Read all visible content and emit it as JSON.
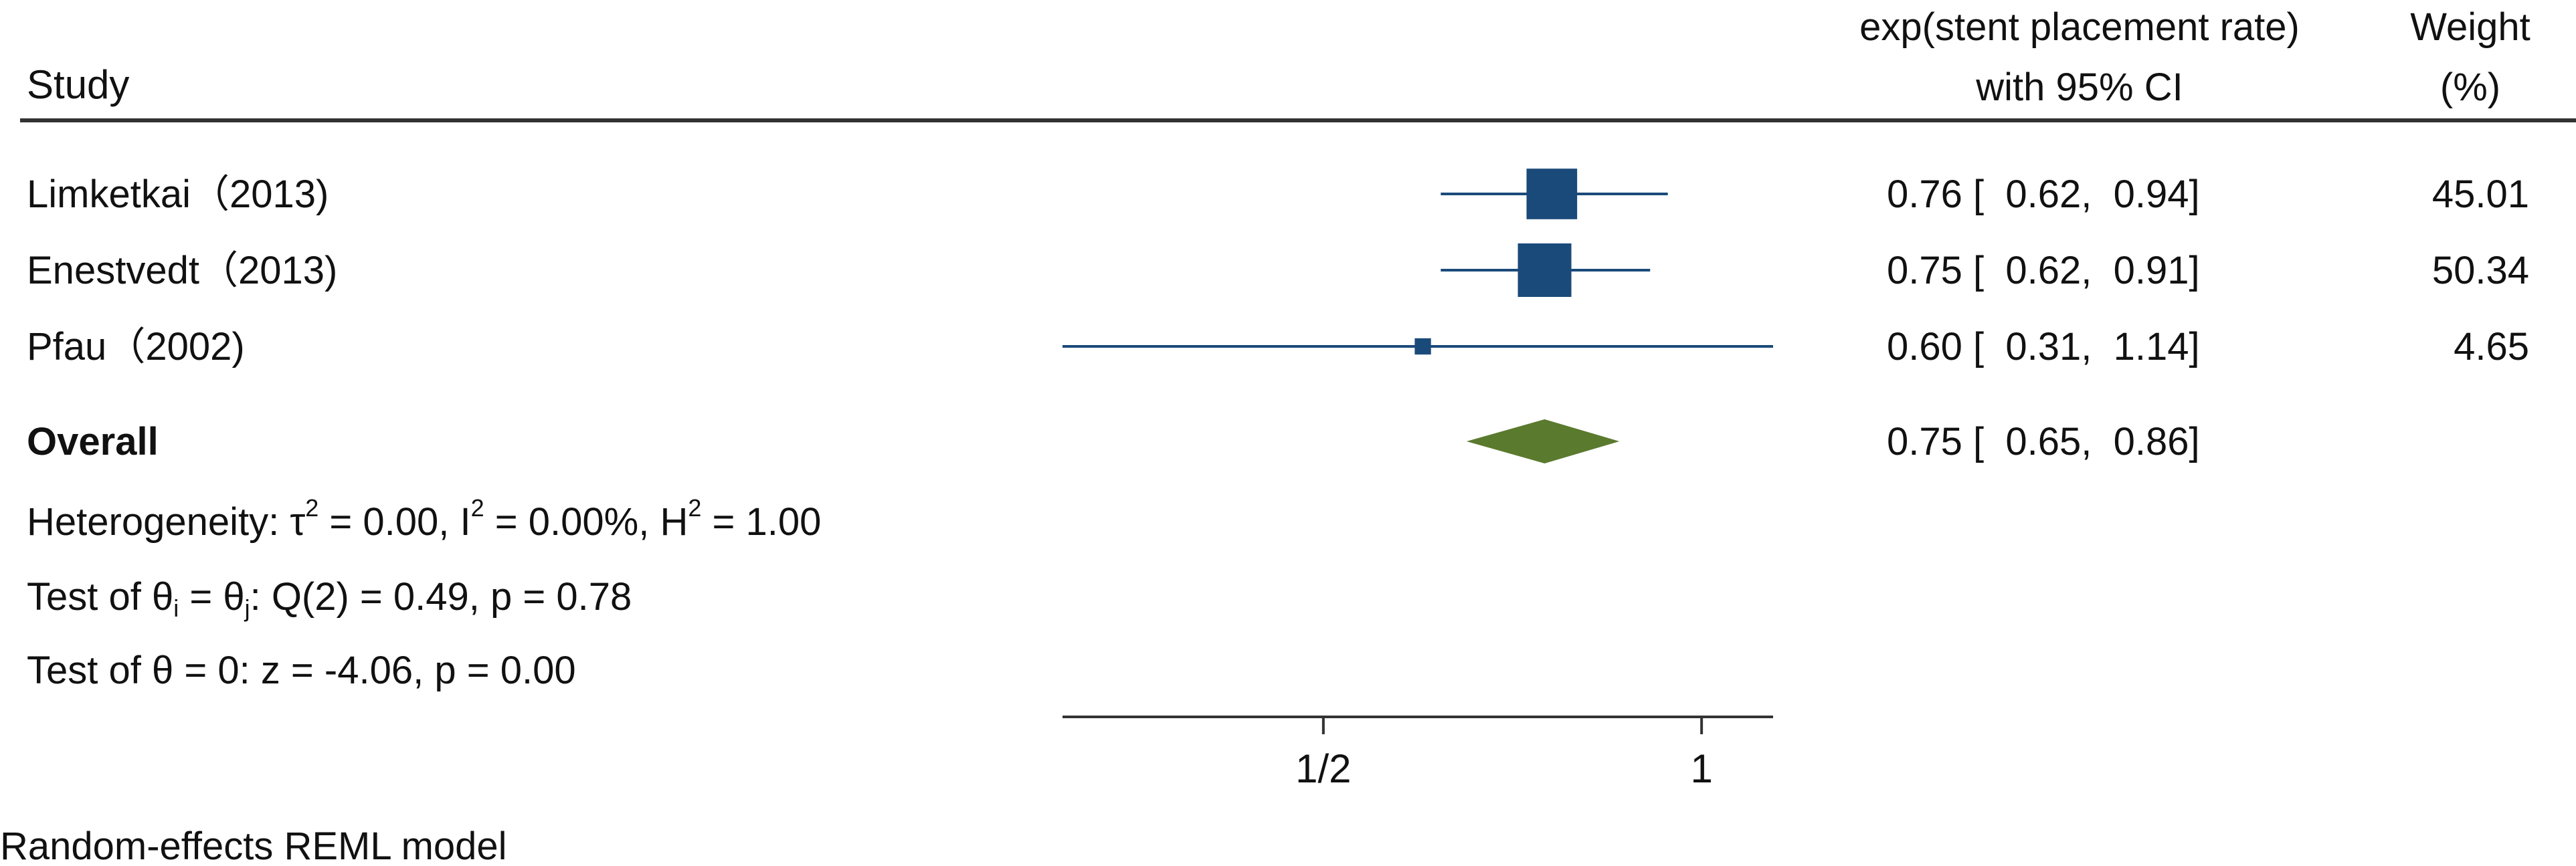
{
  "header": {
    "study": "Study",
    "effect_line1": "exp(stent placement rate)",
    "effect_line2": "with 95% CI",
    "weight_line1": "Weight",
    "weight_line2": "(%)"
  },
  "notes": {
    "heterogeneity": {
      "a": "Heterogeneity: τ",
      "a_sup": "2",
      "b": " = 0.00, I",
      "b_sup": "2",
      "c": " = 0.00%, H",
      "c_sup": "2",
      "d": " = 1.00"
    },
    "test_equal": {
      "a": "Test of θ",
      "a_sub": "i",
      "b": " = θ",
      "b_sub": "j",
      "c": ": Q(2) = 0.49, p = 0.78"
    },
    "test_zero": "Test of θ = 0: z = -4.06, p = 0.00"
  },
  "footer": {
    "model": "Random-effects REML model"
  },
  "colors": {
    "study": "#1a4a7a",
    "overall": "#5a7a2e",
    "rule": "#333333"
  },
  "chart_data": {
    "type": "forest",
    "x_scale": "log",
    "xlim": [
      0.31,
      1.14
    ],
    "xticks": [
      {
        "value": 0.5,
        "label": "1/2"
      },
      {
        "value": 1,
        "label": "1"
      }
    ],
    "studies": [
      {
        "label": "Limketkai（2013)",
        "estimate": 0.76,
        "lower": 0.62,
        "upper": 0.94,
        "ci_text": "0.76 [  0.62,  0.94]",
        "weight": 45.01,
        "weight_text": "45.01"
      },
      {
        "label": "Enestvedt（2013)",
        "estimate": 0.75,
        "lower": 0.62,
        "upper": 0.91,
        "ci_text": "0.75 [  0.62,  0.91]",
        "weight": 50.34,
        "weight_text": "50.34"
      },
      {
        "label": "Pfau（2002)",
        "estimate": 0.6,
        "lower": 0.31,
        "upper": 1.14,
        "ci_text": "0.60 [  0.31,  1.14]",
        "weight": 4.65,
        "weight_text": "4.65"
      }
    ],
    "overall": {
      "label": "Overall",
      "estimate": 0.75,
      "lower": 0.65,
      "upper": 0.86,
      "ci_text": "0.75 [  0.65,  0.86]"
    }
  }
}
